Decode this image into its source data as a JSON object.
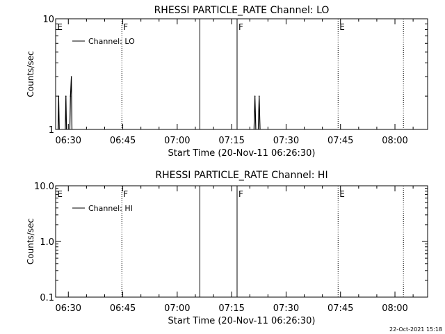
{
  "footer_timestamp": "22-Oct-2021 15:18",
  "chart_data": [
    {
      "type": "line",
      "title": "RHESSI PARTICLE_RATE Channel: LO",
      "xlabel": "Start Time (20-Nov-11 06:26:30)",
      "ylabel": "Counts/sec",
      "yscale": "log",
      "ylim": [
        1,
        10
      ],
      "y_ticks": [
        {
          "value": 1,
          "label": "1"
        },
        {
          "value": 10,
          "label": "10"
        }
      ],
      "xlim": [
        "06:26:30",
        "08:09:00"
      ],
      "x_ticks": [
        "06:30",
        "06:45",
        "07:00",
        "07:15",
        "07:30",
        "07:45",
        "08:00"
      ],
      "legend": {
        "entries": [
          "Channel: LO"
        ],
        "position": "top-left"
      },
      "series": [
        {
          "name": "Channel: LO",
          "points": [
            {
              "x": "06:27:10",
              "y": 1
            },
            {
              "x": "06:27:20",
              "y": 2
            },
            {
              "x": "06:27:30",
              "y": 1
            },
            {
              "x": "06:29:10",
              "y": 1
            },
            {
              "x": "06:29:20",
              "y": 2
            },
            {
              "x": "06:29:30",
              "y": 1
            },
            {
              "x": "06:30:25",
              "y": 1
            },
            {
              "x": "06:30:35",
              "y": 2
            },
            {
              "x": "06:30:50",
              "y": 3
            },
            {
              "x": "06:31:00",
              "y": 1
            },
            {
              "x": "07:21:10",
              "y": 1
            },
            {
              "x": "07:21:25",
              "y": 2
            },
            {
              "x": "07:21:40",
              "y": 1
            },
            {
              "x": "07:22:20",
              "y": 1
            },
            {
              "x": "07:22:35",
              "y": 2
            },
            {
              "x": "07:22:50",
              "y": 1
            }
          ]
        }
      ],
      "markers": [
        {
          "time": "06:26:35",
          "style": "none",
          "label": "E"
        },
        {
          "time": "06:44:45",
          "style": "dotted",
          "label": "F"
        },
        {
          "time": "07:06:15",
          "style": "solid",
          "label": ""
        },
        {
          "time": "07:16:30",
          "style": "solid",
          "label": "F"
        },
        {
          "time": "07:44:20",
          "style": "dotted",
          "label": "E"
        },
        {
          "time": "08:02:20",
          "style": "dotted",
          "label": ""
        }
      ]
    },
    {
      "type": "line",
      "title": "RHESSI PARTICLE_RATE Channel: HI",
      "xlabel": "Start Time (20-Nov-11 06:26:30)",
      "ylabel": "Counts/sec",
      "yscale": "log",
      "ylim": [
        0.1,
        10
      ],
      "y_ticks": [
        {
          "value": 0.1,
          "label": "0.1"
        },
        {
          "value": 1,
          "label": "1.0"
        },
        {
          "value": 10,
          "label": "10.0"
        }
      ],
      "xlim": [
        "06:26:30",
        "08:09:00"
      ],
      "x_ticks": [
        "06:30",
        "06:45",
        "07:00",
        "07:15",
        "07:30",
        "07:45",
        "08:00"
      ],
      "legend": {
        "entries": [
          "Channel: HI"
        ],
        "position": "top-left"
      },
      "series": [
        {
          "name": "Channel: HI",
          "points": []
        }
      ],
      "markers": [
        {
          "time": "06:26:35",
          "style": "none",
          "label": "E"
        },
        {
          "time": "06:44:45",
          "style": "dotted",
          "label": "F"
        },
        {
          "time": "07:06:15",
          "style": "solid",
          "label": ""
        },
        {
          "time": "07:16:30",
          "style": "solid",
          "label": "F"
        },
        {
          "time": "07:44:20",
          "style": "dotted",
          "label": "E"
        },
        {
          "time": "08:02:20",
          "style": "dotted",
          "label": ""
        }
      ]
    }
  ]
}
